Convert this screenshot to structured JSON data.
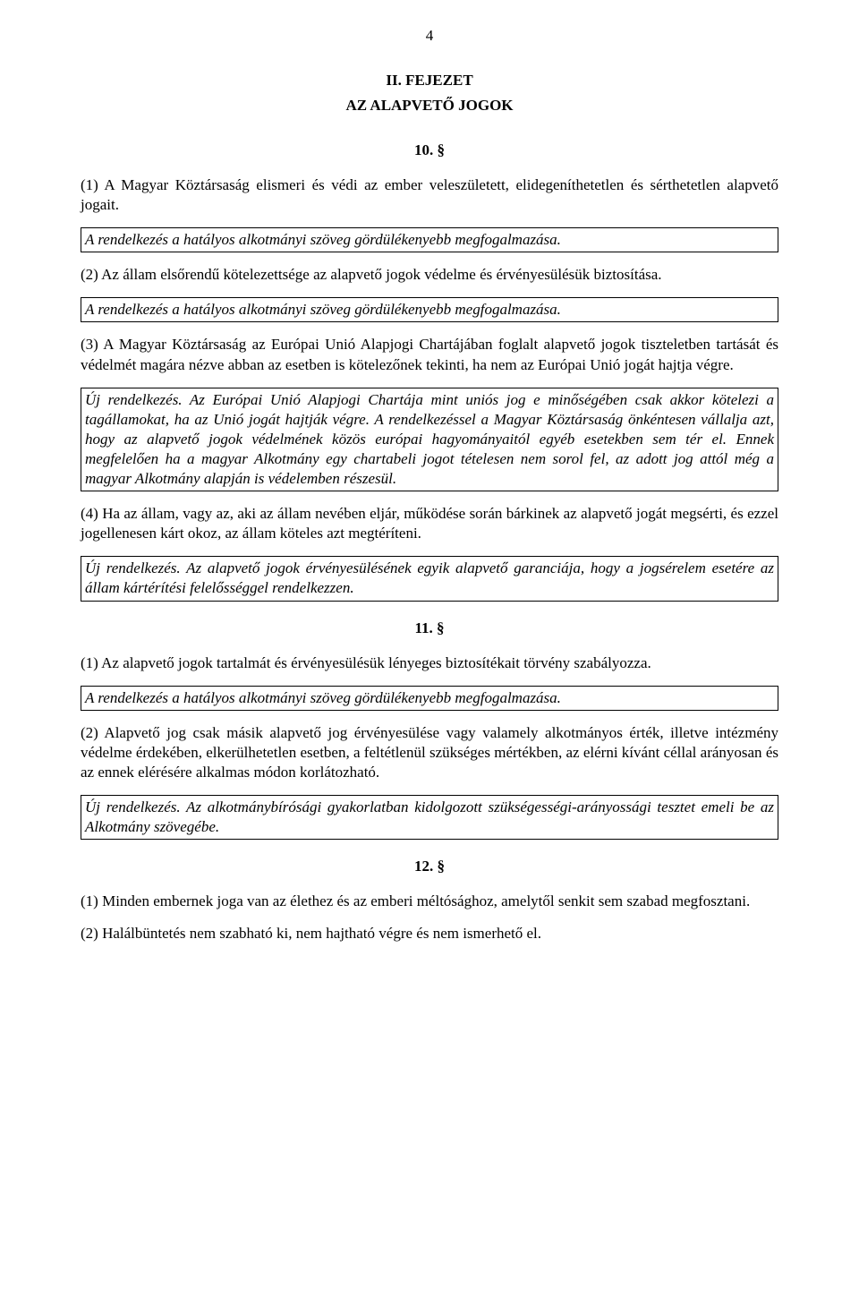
{
  "pageNumber": "4",
  "chapterHeading": "II. FEJEZET",
  "chapterSubtitle": "AZ ALAPVETŐ JOGOK",
  "sections": {
    "s10": {
      "heading": "10. §",
      "p1": "(1) A Magyar Köztársaság elismeri és védi az ember veleszületett, elidegeníthetetlen és sérthetetlen alapvető jogait.",
      "note1": "A rendelkezés a hatályos alkotmányi szöveg gördülékenyebb megfogalmazása.",
      "p2": "(2) Az állam elsőrendű kötelezettsége az alapvető jogok védelme és érvényesülésük biztosítása.",
      "note2": "A rendelkezés a hatályos alkotmányi szöveg gördülékenyebb megfogalmazása.",
      "p3": "(3) A Magyar Köztársaság az Európai Unió Alapjogi Chartájában foglalt alapvető jogok tiszteletben tartását és védelmét magára nézve abban az esetben is kötelezőnek tekinti, ha nem az Európai Unió jogát hajtja végre.",
      "note3": "Új rendelkezés. Az Európai Unió Alapjogi Chartája mint uniós jog e minőségében csak akkor kötelezi a tagállamokat, ha az Unió jogát hajtják végre. A rendelkezéssel a Magyar Köztársaság önkéntesen vállalja azt, hogy az alapvető jogok védelmének közös európai hagyományaitól egyéb esetekben sem tér el. Ennek megfelelően ha a magyar Alkotmány egy chartabeli jogot tételesen nem sorol fel, az adott jog attól még a magyar Alkotmány alapján is védelemben részesül.",
      "p4": "(4) Ha az állam, vagy az, aki az állam nevében eljár, működése során bárkinek az alapvető jogát megsérti, és ezzel jogellenesen kárt okoz, az állam köteles azt megtéríteni.",
      "note4": "Új rendelkezés. Az alapvető jogok érvényesülésének egyik alapvető garanciája, hogy a jogsérelem esetére az állam kártérítési felelősséggel rendelkezzen."
    },
    "s11": {
      "heading": "11. §",
      "p1": "(1) Az alapvető jogok tartalmát és érvényesülésük lényeges biztosítékait törvény szabályozza.",
      "note1": "A rendelkezés a hatályos alkotmányi szöveg gördülékenyebb megfogalmazása.",
      "p2": "(2) Alapvető jog csak másik alapvető jog érvényesülése vagy valamely alkotmányos érték, illetve intézmény védelme érdekében, elkerülhetetlen esetben, a feltétlenül szükséges mértékben, az elérni kívánt céllal arányosan és az ennek elérésére alkalmas módon korlátozható.",
      "note2": "Új rendelkezés. Az alkotmánybírósági gyakorlatban kidolgozott szükségességi-arányossági tesztet emeli be az Alkotmány szövegébe."
    },
    "s12": {
      "heading": "12. §",
      "p1": "(1) Minden embernek joga van az élethez és az emberi méltósághoz, amelytől senkit sem szabad megfosztani.",
      "p2": "(2) Halálbüntetés nem szabható ki, nem hajtható végre és nem ismerhető el."
    }
  }
}
